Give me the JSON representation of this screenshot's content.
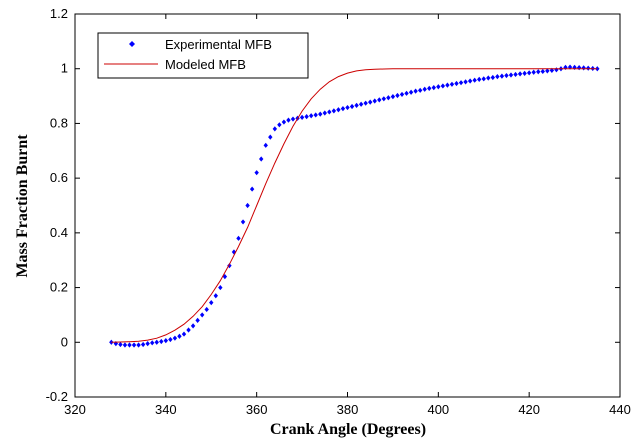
{
  "chart_data": {
    "type": "line",
    "xlabel": "Crank Angle (Degrees)",
    "ylabel": "Mass Fraction Burnt",
    "xlim": [
      320,
      440
    ],
    "ylim": [
      -0.2,
      1.2
    ],
    "x_ticks": [
      "320",
      "340",
      "360",
      "380",
      "400",
      "420",
      "440"
    ],
    "y_ticks": [
      "-0.2",
      "0",
      "0.2",
      "0.4",
      "0.6",
      "0.8",
      "1",
      "1.2"
    ],
    "grid": false,
    "legend_position": "top-left",
    "series": [
      {
        "name": "Experimental MFB",
        "style": "markers",
        "color": "#0000ff",
        "x": [
          328,
          329,
          330,
          331,
          332,
          333,
          334,
          335,
          336,
          337,
          338,
          339,
          340,
          341,
          342,
          343,
          344,
          345,
          346,
          347,
          348,
          349,
          350,
          351,
          352,
          353,
          354,
          355,
          356,
          357,
          358,
          359,
          360,
          361,
          362,
          363,
          364,
          365,
          366,
          367,
          368,
          369,
          370,
          371,
          372,
          373,
          374,
          375,
          376,
          377,
          378,
          379,
          380,
          381,
          382,
          383,
          384,
          385,
          386,
          387,
          388,
          389,
          390,
          391,
          392,
          393,
          394,
          395,
          396,
          397,
          398,
          399,
          400,
          401,
          402,
          403,
          404,
          405,
          406,
          407,
          408,
          409,
          410,
          411,
          412,
          413,
          414,
          415,
          416,
          417,
          418,
          419,
          420,
          421,
          422,
          423,
          424,
          425,
          426,
          427,
          428,
          429,
          430,
          431,
          432,
          433,
          434,
          435
        ],
        "y": [
          0.0,
          -0.005,
          -0.008,
          -0.01,
          -0.01,
          -0.01,
          -0.01,
          -0.008,
          -0.005,
          -0.002,
          0.0,
          0.003,
          0.006,
          0.01,
          0.015,
          0.022,
          0.03,
          0.045,
          0.06,
          0.08,
          0.1,
          0.12,
          0.145,
          0.17,
          0.2,
          0.24,
          0.28,
          0.33,
          0.38,
          0.44,
          0.5,
          0.56,
          0.62,
          0.67,
          0.72,
          0.75,
          0.78,
          0.795,
          0.805,
          0.812,
          0.816,
          0.819,
          0.822,
          0.825,
          0.828,
          0.831,
          0.834,
          0.838,
          0.842,
          0.846,
          0.85,
          0.854,
          0.858,
          0.862,
          0.866,
          0.87,
          0.874,
          0.878,
          0.882,
          0.886,
          0.89,
          0.894,
          0.898,
          0.902,
          0.906,
          0.91,
          0.914,
          0.918,
          0.921,
          0.925,
          0.928,
          0.931,
          0.934,
          0.937,
          0.94,
          0.943,
          0.946,
          0.949,
          0.952,
          0.955,
          0.958,
          0.961,
          0.963,
          0.966,
          0.968,
          0.971,
          0.973,
          0.975,
          0.977,
          0.979,
          0.981,
          0.983,
          0.985,
          0.987,
          0.989,
          0.99,
          0.992,
          0.994,
          0.996,
          1.0,
          1.005,
          1.006,
          1.005,
          1.004,
          1.003,
          1.002,
          1.001,
          1.0
        ]
      },
      {
        "name": "Modeled MFB",
        "style": "line",
        "color": "#cc0000",
        "x": [
          328,
          330,
          332,
          334,
          336,
          338,
          340,
          342,
          344,
          346,
          348,
          350,
          352,
          354,
          356,
          358,
          360,
          362,
          364,
          366,
          368,
          370,
          372,
          374,
          376,
          378,
          380,
          382,
          384,
          386,
          388,
          390,
          395,
          400,
          410,
          420,
          430,
          435
        ],
        "y": [
          0.0,
          0.001,
          0.002,
          0.004,
          0.008,
          0.015,
          0.027,
          0.044,
          0.066,
          0.095,
          0.13,
          0.175,
          0.225,
          0.285,
          0.35,
          0.42,
          0.5,
          0.58,
          0.655,
          0.725,
          0.79,
          0.845,
          0.89,
          0.925,
          0.952,
          0.971,
          0.984,
          0.992,
          0.996,
          0.998,
          0.999,
          1.0,
          1.0,
          1.0,
          1.0,
          1.0,
          1.0,
          1.0
        ]
      }
    ]
  }
}
